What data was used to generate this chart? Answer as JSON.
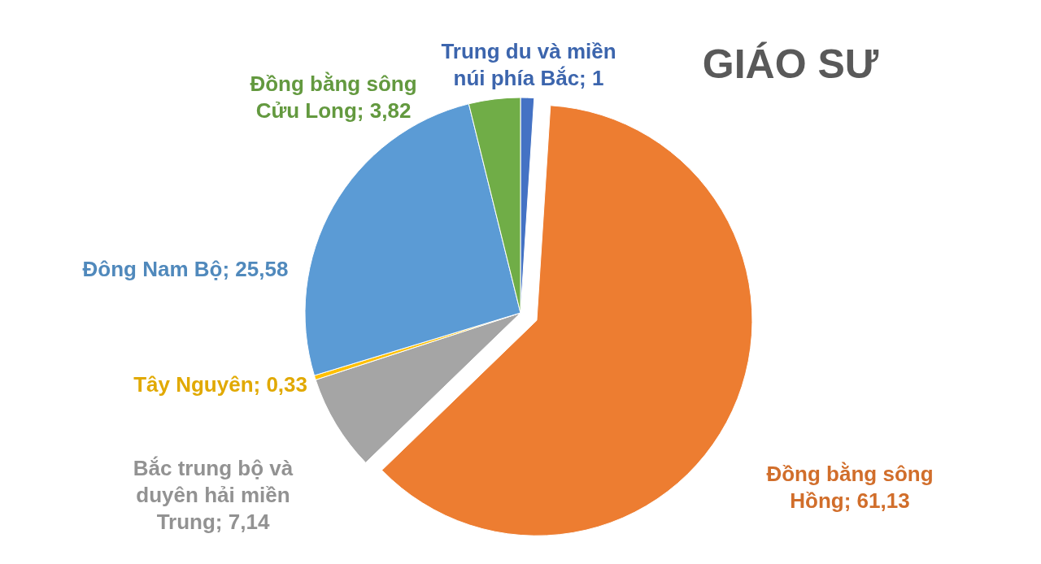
{
  "chart_data": {
    "type": "pie",
    "title": "GIÁO SƯ",
    "categories": [
      "Trung du và miền núi phía Bắc",
      "Đồng bằng sông Hồng",
      "Bắc trung bộ và duyên hải miền Trung",
      "Tây Nguyên",
      "Đông Nam Bộ",
      "Đồng bằng sông Cửu Long"
    ],
    "values": [
      1,
      61.13,
      7.14,
      0.33,
      25.58,
      3.82
    ],
    "colors": [
      "#4472c4",
      "#ed7d31",
      "#a5a5a5",
      "#ffc000",
      "#5b9bd5",
      "#70ad47"
    ],
    "value_labels": [
      "1",
      "61,13",
      "7,14",
      "0,33",
      "25,58",
      "3,82"
    ]
  }
}
